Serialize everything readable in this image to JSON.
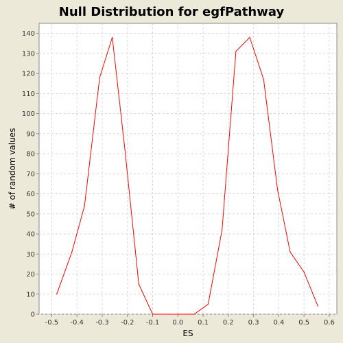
{
  "chart_data": {
    "type": "line",
    "title": "Null Distribution for egfPathway",
    "xlabel": "ES",
    "ylabel": "# of random values",
    "xlim": [
      -0.55,
      0.63
    ],
    "ylim": [
      0,
      145
    ],
    "grid": true,
    "x_ticks": [
      "-0.5",
      "-0.4",
      "-0.3",
      "-0.2",
      "-0.1",
      "0.0",
      "0.1",
      "0.2",
      "0.3",
      "0.4",
      "0.5",
      "0.6"
    ],
    "y_ticks": [
      "0",
      "10",
      "20",
      "30",
      "40",
      "50",
      "60",
      "70",
      "80",
      "90",
      "100",
      "110",
      "120",
      "130",
      "140"
    ],
    "series": [
      {
        "color": "#ff0000",
        "points": [
          [
            -0.48,
            10
          ],
          [
            -0.42,
            31
          ],
          [
            -0.37,
            54
          ],
          [
            -0.31,
            118
          ],
          [
            -0.26,
            138
          ],
          [
            -0.21,
            82
          ],
          [
            -0.155,
            15
          ],
          [
            -0.1,
            0
          ],
          [
            0.065,
            0
          ],
          [
            0.12,
            5
          ],
          [
            0.175,
            42
          ],
          [
            0.23,
            131
          ],
          [
            0.285,
            138
          ],
          [
            0.34,
            117
          ],
          [
            0.395,
            62
          ],
          [
            0.445,
            31
          ],
          [
            0.5,
            21
          ],
          [
            0.555,
            4
          ]
        ]
      }
    ],
    "background_color": "#ffffff",
    "outer_background_color": "#ece9d8",
    "grid_color": "#d8d8d8"
  }
}
